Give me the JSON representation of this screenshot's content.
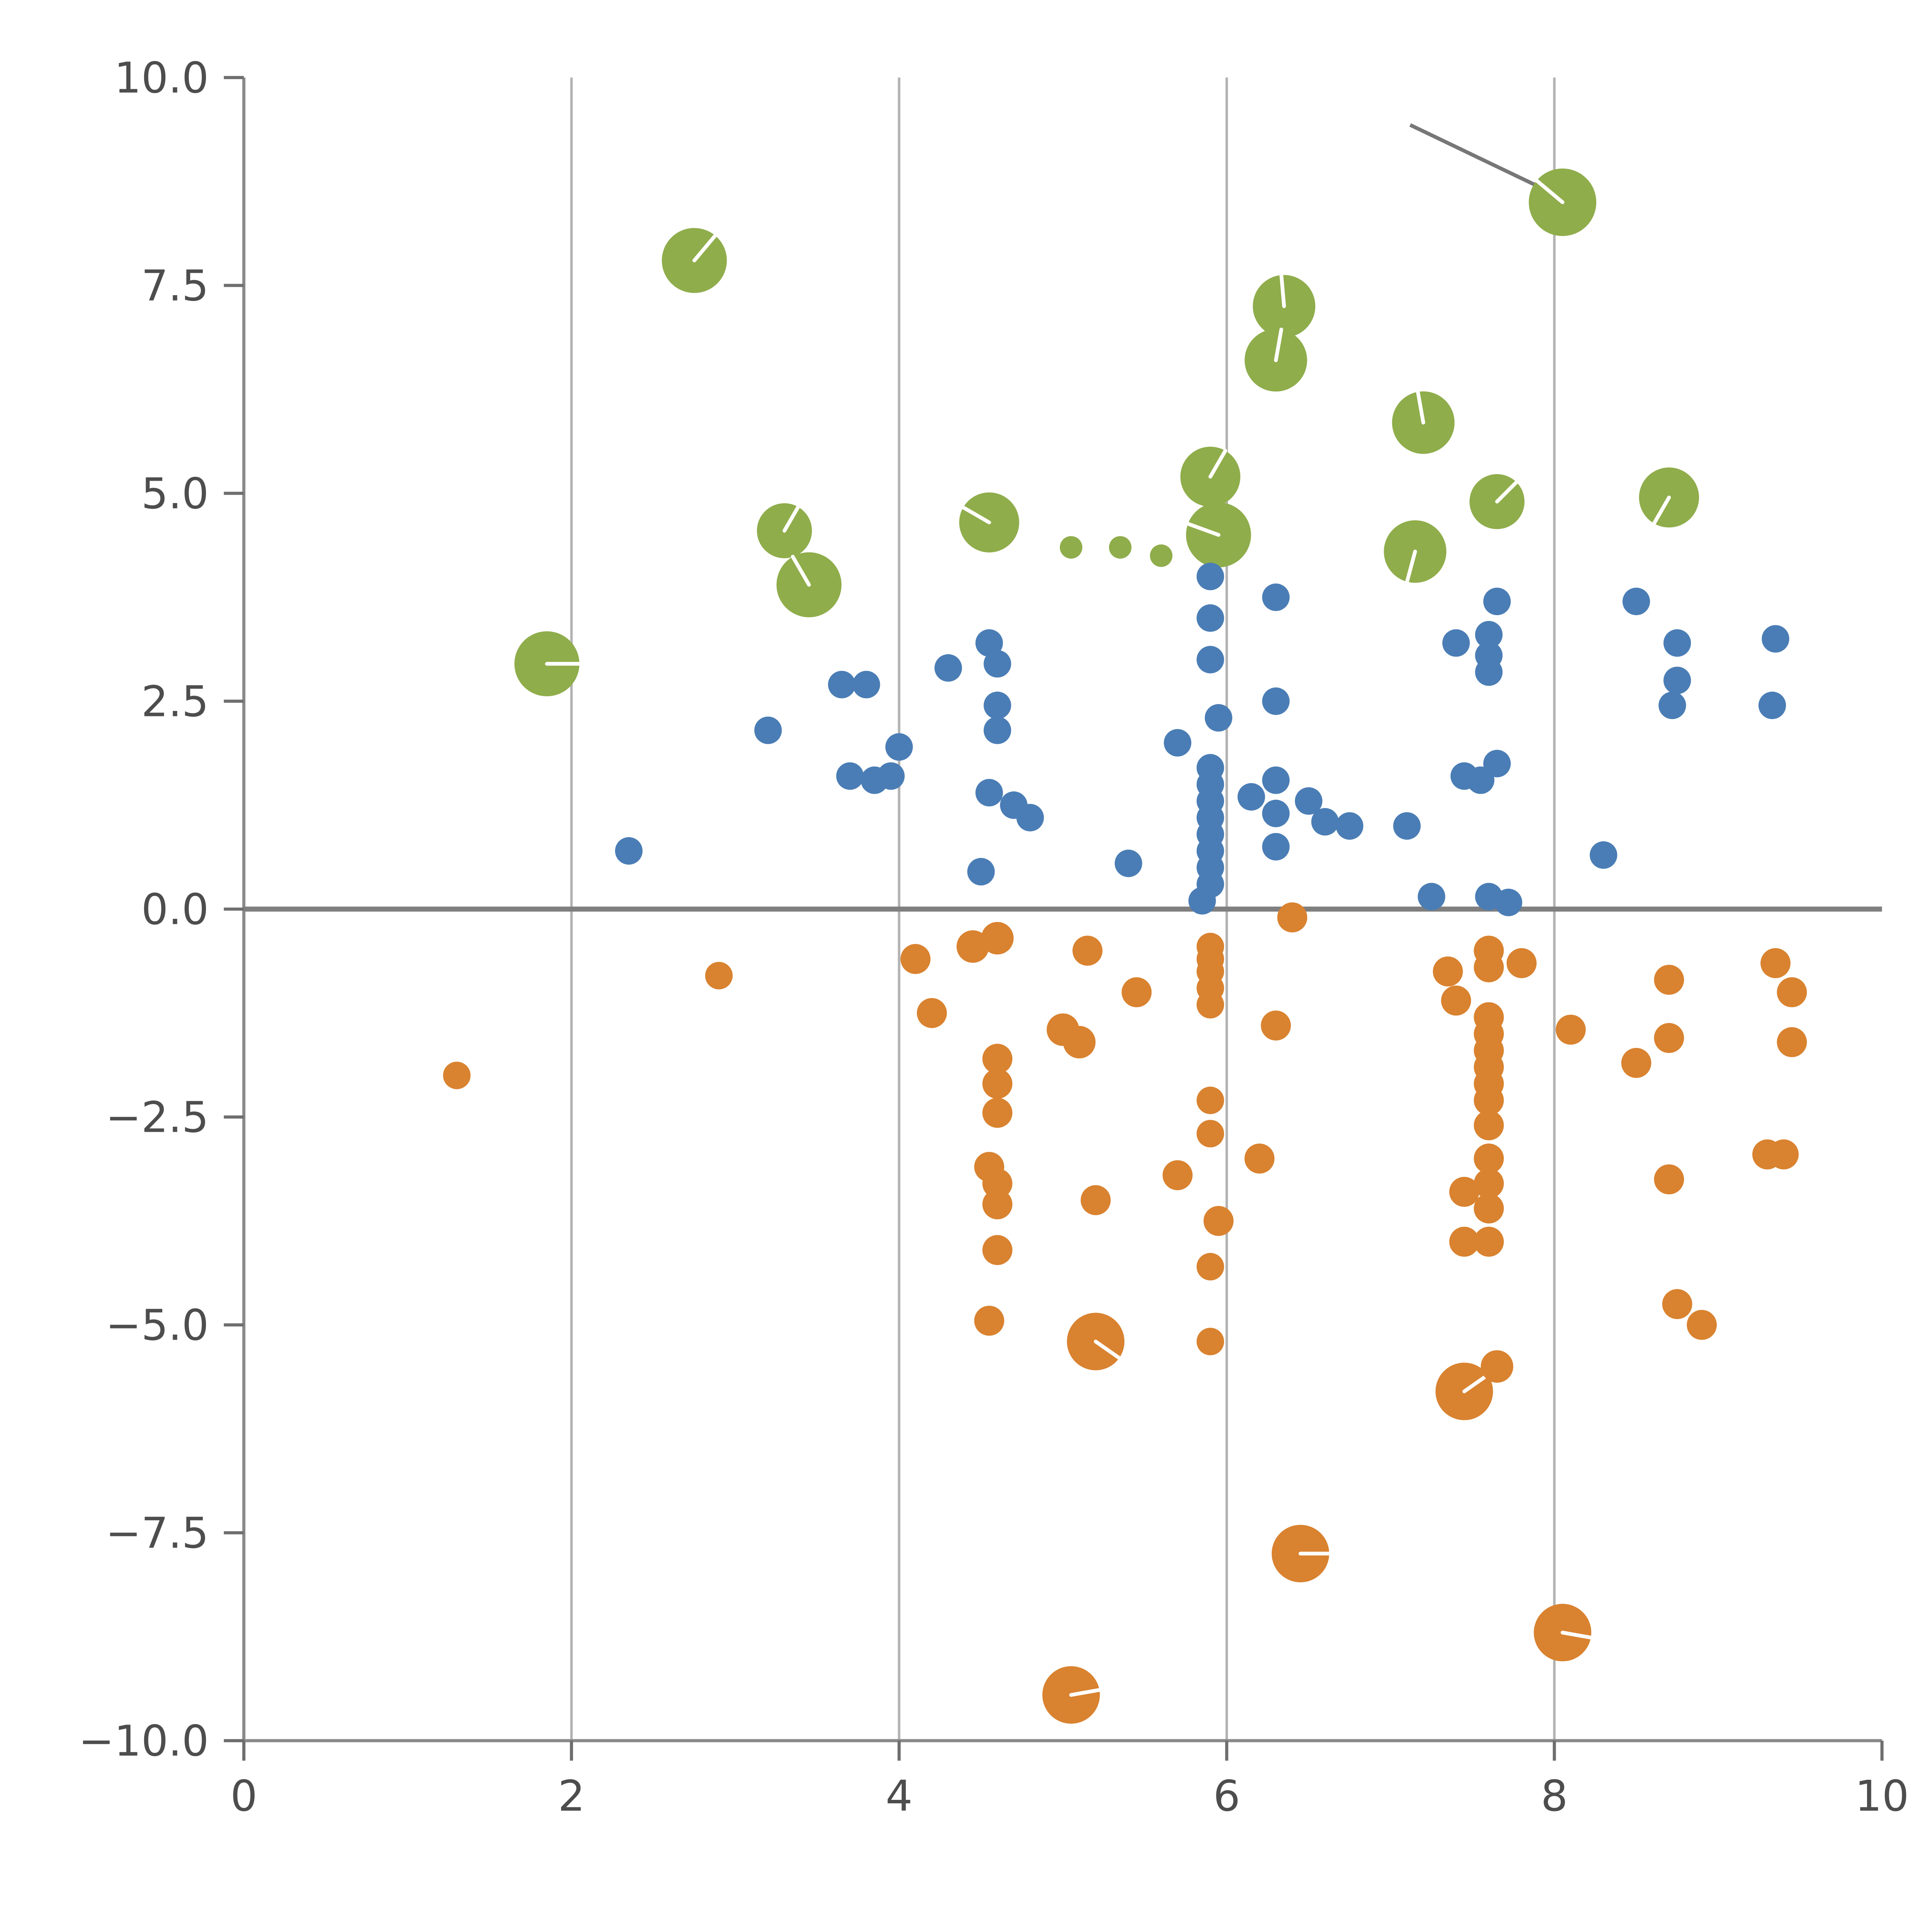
{
  "chart_data": {
    "type": "scatter",
    "title": "",
    "xlabel": "",
    "ylabel": "",
    "xlim": [
      0,
      10
    ],
    "ylim": [
      -10,
      10
    ],
    "x_ticks": [
      0,
      2,
      4,
      6,
      8,
      10
    ],
    "y_ticks": [
      10.0,
      7.5,
      5.0,
      2.5,
      0.0,
      -2.5,
      -5.0,
      -7.5,
      -10.0
    ],
    "grid": "vertical-only",
    "zero_line": true,
    "legend": "none",
    "colors": {
      "green": "#8fad4b",
      "blue": "#4a7db5",
      "orange": "#d9822f",
      "grid": "#b3b3b3",
      "axis": "#8a8a8a",
      "zero_line": "#7f7f7f",
      "tick": "#6e6e6e",
      "tick_label": "#4d4d4d",
      "annotation": "#777777",
      "marker_tick": "#ffffff"
    },
    "annotation_line": {
      "x1": 7.12,
      "y1": 9.43,
      "x2": 8.04,
      "y2": 8.56
    },
    "series": [
      {
        "name": "green-bubbles",
        "color_key": "green",
        "points": [
          [
            2.75,
            7.8,
            26,
            50
          ],
          [
            8.05,
            8.5,
            27,
            140
          ],
          [
            6.35,
            7.25,
            25,
            95
          ],
          [
            6.3,
            6.6,
            25,
            80
          ],
          [
            7.2,
            5.85,
            25,
            100
          ],
          [
            5.9,
            5.2,
            24,
            60
          ],
          [
            5.95,
            4.5,
            26,
            160
          ],
          [
            4.55,
            4.65,
            24,
            150
          ],
          [
            3.3,
            4.55,
            22,
            60
          ],
          [
            3.45,
            3.9,
            26,
            120
          ],
          [
            1.85,
            2.95,
            26,
            0
          ],
          [
            7.15,
            4.3,
            25,
            255
          ],
          [
            7.65,
            4.9,
            22,
            45
          ],
          [
            8.7,
            4.95,
            24,
            240
          ],
          [
            5.05,
            4.35,
            9
          ],
          [
            5.35,
            4.35,
            9
          ],
          [
            5.6,
            4.25,
            9
          ]
        ]
      },
      {
        "name": "blue-dots",
        "color_key": "blue",
        "points": [
          [
            2.35,
            0.7,
            11
          ],
          [
            3.2,
            2.15,
            11
          ],
          [
            3.65,
            2.7,
            11
          ],
          [
            3.8,
            2.7,
            11
          ],
          [
            3.7,
            1.6,
            11
          ],
          [
            3.85,
            1.55,
            11
          ],
          [
            3.95,
            1.6,
            11
          ],
          [
            4.0,
            1.95,
            11
          ],
          [
            4.3,
            2.9,
            11
          ],
          [
            4.55,
            3.2,
            11
          ],
          [
            4.6,
            2.95,
            11
          ],
          [
            4.6,
            2.45,
            11
          ],
          [
            4.6,
            2.15,
            11
          ],
          [
            4.55,
            1.4,
            11
          ],
          [
            4.7,
            1.25,
            11
          ],
          [
            4.8,
            1.1,
            11
          ],
          [
            4.5,
            0.45,
            11
          ],
          [
            5.4,
            0.55,
            11
          ],
          [
            5.7,
            2.0,
            11
          ],
          [
            5.9,
            4.0,
            11
          ],
          [
            5.9,
            3.5,
            11
          ],
          [
            5.9,
            3.0,
            11
          ],
          [
            5.95,
            2.3,
            11
          ],
          [
            5.9,
            1.7,
            11
          ],
          [
            5.9,
            1.5,
            11
          ],
          [
            5.9,
            1.3,
            11
          ],
          [
            5.9,
            1.1,
            11
          ],
          [
            5.9,
            0.9,
            11
          ],
          [
            5.9,
            0.7,
            11
          ],
          [
            5.9,
            0.5,
            11
          ],
          [
            5.9,
            0.3,
            11
          ],
          [
            5.85,
            0.1,
            11
          ],
          [
            6.3,
            3.75,
            11
          ],
          [
            6.3,
            2.5,
            11
          ],
          [
            6.15,
            1.35,
            11
          ],
          [
            6.3,
            1.55,
            11
          ],
          [
            6.3,
            1.15,
            11
          ],
          [
            6.3,
            0.75,
            11
          ],
          [
            6.5,
            1.3,
            11
          ],
          [
            6.6,
            1.05,
            11
          ],
          [
            6.75,
            1.0,
            11
          ],
          [
            7.1,
            1.0,
            11
          ],
          [
            7.25,
            0.15,
            11
          ],
          [
            7.4,
            3.2,
            11
          ],
          [
            7.45,
            1.6,
            11
          ],
          [
            7.55,
            1.55,
            11
          ],
          [
            7.6,
            3.3,
            11
          ],
          [
            7.6,
            3.05,
            11
          ],
          [
            7.6,
            2.85,
            11
          ],
          [
            7.65,
            3.7,
            11
          ],
          [
            7.65,
            1.75,
            11
          ],
          [
            7.6,
            0.15,
            11
          ],
          [
            7.72,
            0.08,
            11
          ],
          [
            8.3,
            0.65,
            11
          ],
          [
            8.5,
            3.7,
            11
          ],
          [
            8.75,
            3.2,
            11
          ],
          [
            8.75,
            2.75,
            11
          ],
          [
            8.72,
            2.45,
            11
          ],
          [
            9.35,
            3.25,
            11
          ],
          [
            9.33,
            2.45,
            11
          ]
        ]
      },
      {
        "name": "orange-dots",
        "color_key": "orange",
        "points": [
          [
            1.3,
            -2.0,
            11
          ],
          [
            2.9,
            -0.8,
            11
          ],
          [
            4.1,
            -0.6,
            12
          ],
          [
            4.2,
            -1.25,
            12
          ],
          [
            4.45,
            -0.45,
            13
          ],
          [
            4.6,
            -0.35,
            13
          ],
          [
            4.6,
            -1.8,
            12
          ],
          [
            4.6,
            -2.1,
            12
          ],
          [
            4.6,
            -2.45,
            12
          ],
          [
            4.55,
            -3.1,
            12
          ],
          [
            4.6,
            -3.3,
            12
          ],
          [
            4.6,
            -3.55,
            12
          ],
          [
            4.6,
            -4.1,
            12
          ],
          [
            4.55,
            -4.95,
            12
          ],
          [
            5.0,
            -1.45,
            13
          ],
          [
            5.1,
            -1.6,
            13
          ],
          [
            5.15,
            -0.5,
            12
          ],
          [
            5.2,
            -3.5,
            12
          ],
          [
            5.45,
            -1.0,
            12
          ],
          [
            5.2,
            -5.2,
            23,
            -35
          ],
          [
            5.05,
            -9.45,
            23,
            10
          ],
          [
            5.7,
            -3.2,
            12
          ],
          [
            5.9,
            -0.45,
            11
          ],
          [
            5.9,
            -0.6,
            11
          ],
          [
            5.9,
            -0.75,
            11
          ],
          [
            5.9,
            -0.95,
            11
          ],
          [
            5.9,
            -1.15,
            11
          ],
          [
            5.9,
            -2.3,
            11
          ],
          [
            5.9,
            -2.7,
            11
          ],
          [
            5.95,
            -3.75,
            12
          ],
          [
            5.9,
            -4.3,
            11
          ],
          [
            5.9,
            -5.2,
            11
          ],
          [
            6.2,
            -3.0,
            12
          ],
          [
            6.3,
            -1.4,
            12
          ],
          [
            6.4,
            -0.1,
            12
          ],
          [
            6.45,
            -7.75,
            23,
            0
          ],
          [
            7.35,
            -0.75,
            12
          ],
          [
            7.4,
            -1.1,
            12
          ],
          [
            7.45,
            -3.4,
            12
          ],
          [
            7.45,
            -4.0,
            12
          ],
          [
            7.6,
            -0.5,
            12
          ],
          [
            7.6,
            -0.7,
            12
          ],
          [
            7.6,
            -1.3,
            12
          ],
          [
            7.6,
            -1.5,
            12
          ],
          [
            7.6,
            -1.7,
            12
          ],
          [
            7.6,
            -1.9,
            12
          ],
          [
            7.6,
            -2.1,
            12
          ],
          [
            7.6,
            -2.3,
            12
          ],
          [
            7.6,
            -2.6,
            12
          ],
          [
            7.6,
            -3.0,
            12
          ],
          [
            7.6,
            -3.3,
            12
          ],
          [
            7.6,
            -3.6,
            12
          ],
          [
            7.6,
            -4.0,
            12
          ],
          [
            7.45,
            -5.8,
            23,
            35
          ],
          [
            7.65,
            -5.5,
            13
          ],
          [
            7.8,
            -0.65,
            12
          ],
          [
            8.05,
            -8.7,
            23,
            -10
          ],
          [
            8.1,
            -1.45,
            12
          ],
          [
            8.5,
            -1.85,
            12
          ],
          [
            8.7,
            -0.85,
            12
          ],
          [
            8.7,
            -1.55,
            12
          ],
          [
            8.7,
            -3.25,
            12
          ],
          [
            8.75,
            -4.75,
            12
          ],
          [
            8.9,
            -5.0,
            12
          ],
          [
            9.3,
            -2.95,
            12
          ],
          [
            9.4,
            -2.95,
            12
          ],
          [
            9.35,
            -0.65,
            12
          ],
          [
            9.45,
            -1.0,
            12
          ],
          [
            9.45,
            -1.6,
            12
          ]
        ]
      }
    ]
  }
}
